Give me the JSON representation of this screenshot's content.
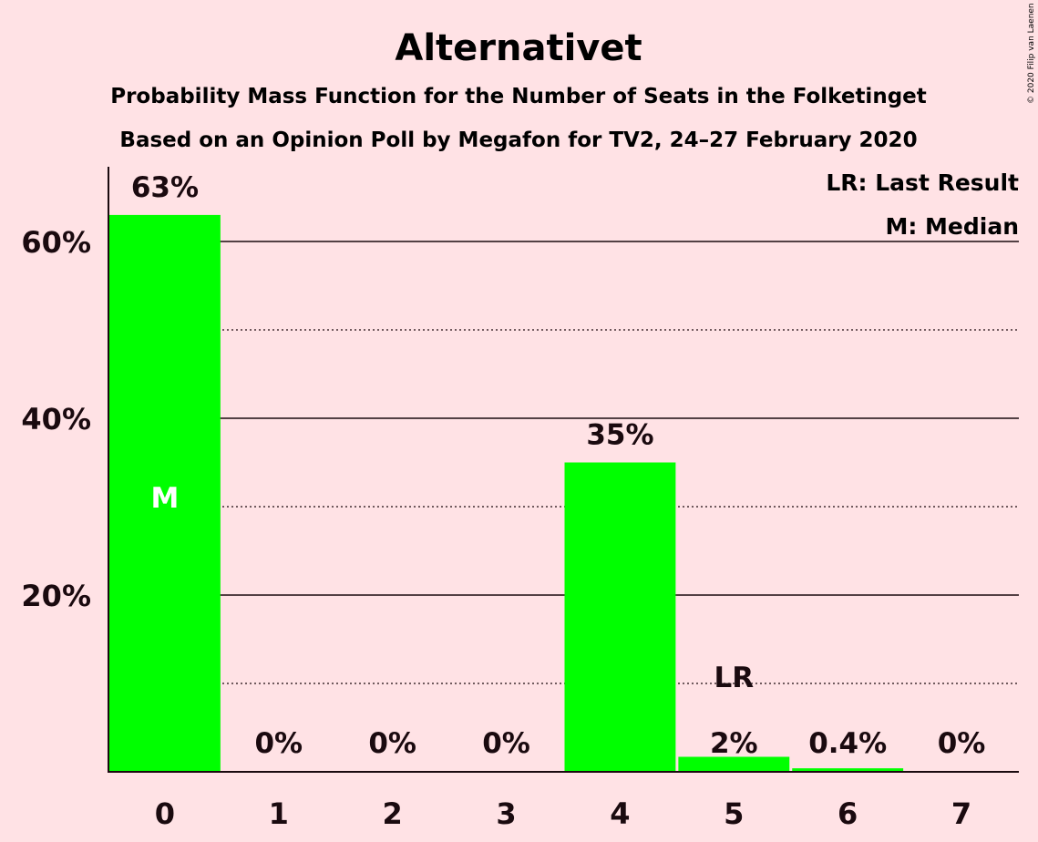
{
  "chart_data": {
    "type": "bar",
    "title": "Alternativet",
    "subtitle": "Probability Mass Function for the Number of Seats in the Folketinget",
    "subtitle2": "Based on an Opinion Poll by Megafon for TV2, 24–27 February 2020",
    "copyright": "© 2020 Filip van Laenen",
    "categories": [
      "0",
      "1",
      "2",
      "3",
      "4",
      "5",
      "6",
      "7"
    ],
    "values": [
      63,
      0,
      0,
      0,
      35,
      1.7,
      0.4,
      0
    ],
    "value_labels": [
      "63%",
      "0%",
      "0%",
      "0%",
      "35%",
      "2%",
      "0.4%",
      "0%"
    ],
    "ylim": [
      0,
      68
    ],
    "yticks": [
      {
        "value": 20,
        "label": "20%"
      },
      {
        "value": 40,
        "label": "40%"
      },
      {
        "value": 60,
        "label": "60%"
      }
    ],
    "grid_solid": [
      20,
      40,
      60
    ],
    "grid_dotted": [
      10,
      30,
      50
    ],
    "median_index": 0,
    "median_marker": "M",
    "last_result_index": 5,
    "last_result_marker": "LR",
    "legend": [
      "LR: Last Result",
      "M: Median"
    ],
    "legend_position": "top-right",
    "colors": {
      "background": "#FFE2E5",
      "bar": "#00FF00",
      "text": "#1a0a0f",
      "median_text": "#FFFFFF"
    }
  }
}
